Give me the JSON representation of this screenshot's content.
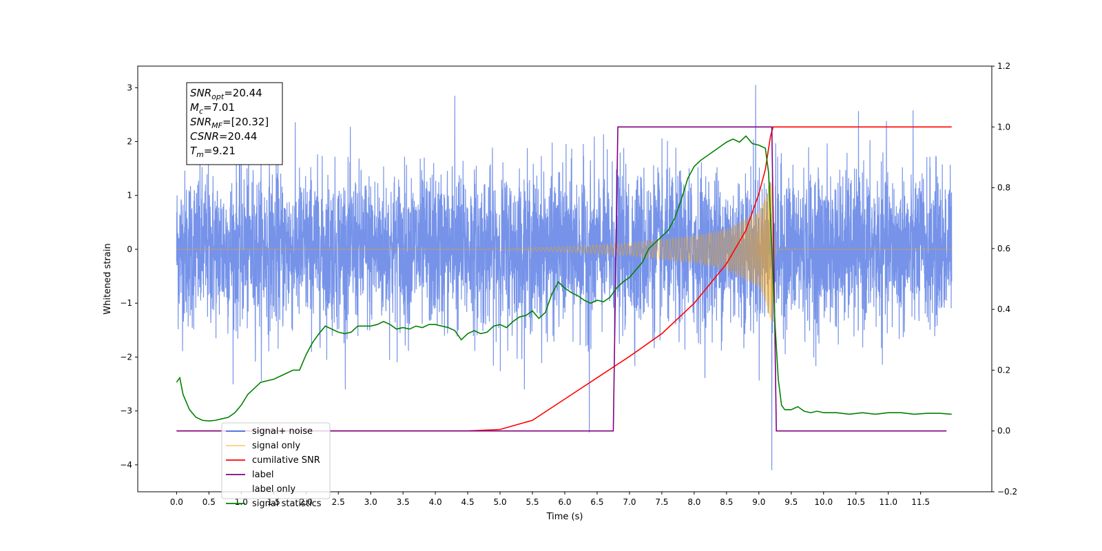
{
  "chart_data": {
    "type": "line",
    "xlabel": "Time (s)",
    "ylabel": "Whitened strain",
    "xlim": [
      -0.6,
      12.6
    ],
    "ylim": [
      -4.5,
      3.4
    ],
    "ylim_right": [
      -0.2,
      1.2
    ],
    "x_ticks": [
      "0.0",
      "0.5",
      "1.0",
      "1.5",
      "2.0",
      "2.5",
      "3.0",
      "3.5",
      "4.0",
      "4.5",
      "5.0",
      "5.5",
      "6.0",
      "6.5",
      "7.0",
      "7.5",
      "8.0",
      "8.5",
      "9.0",
      "9.5",
      "10.0",
      "10.5",
      "11.0",
      "11.5"
    ],
    "y_ticks_left": [
      "−4",
      "−3",
      "−2",
      "−1",
      "0",
      "1",
      "2",
      "3"
    ],
    "y_ticks_right": [
      "−0.2",
      "0.0",
      "0.2",
      "0.4",
      "0.6",
      "0.8",
      "1.0",
      "1.2"
    ],
    "grid": false,
    "legend_position": "lower-left",
    "legend": [
      {
        "label": "signal+ noise",
        "color": "#4169e1"
      },
      {
        "label": "signal only",
        "color": "#ffa500"
      },
      {
        "label": "cumilative SNR",
        "color": "#ff0000"
      },
      {
        "label": "label",
        "color": "#800080"
      },
      {
        "label": "label only",
        "color": "#808080"
      },
      {
        "label": "signal statistics",
        "color": "#008000"
      }
    ],
    "annotation": {
      "lines": [
        {
          "base": "SNR",
          "sub": "opt",
          "value": "=20.44"
        },
        {
          "base": "M",
          "sub": "c",
          "value": "=7.01"
        },
        {
          "base": "SNR",
          "sub": "MF",
          "value": "=[20.32]"
        },
        {
          "base": "CSNR",
          "sub": "",
          "value": "=20.44"
        },
        {
          "base": "T",
          "sub": "m",
          "value": "=9.21"
        }
      ]
    },
    "series": [
      {
        "name": "signal+ noise",
        "axis": "left",
        "color": "#4169e1",
        "noise": {
          "x_start": 0.0,
          "x_end": 11.98,
          "amplitude_sigma": 1.0,
          "spikes": [
            {
              "x": 6.38,
              "y": -3.4
            },
            {
              "x": 9.2,
              "y": -4.1
            },
            {
              "x": 8.95,
              "y": 3.05
            },
            {
              "x": 4.3,
              "y": 2.85
            }
          ]
        }
      },
      {
        "name": "signal only",
        "axis": "left",
        "color": "#ffa500",
        "envelope": {
          "x": [
            0.0,
            4.5,
            5.0,
            6.0,
            7.0,
            8.0,
            8.5,
            9.0,
            9.1,
            9.15,
            9.21,
            9.25,
            11.98
          ],
          "amp": [
            0.0,
            0.0,
            0.01,
            0.05,
            0.12,
            0.25,
            0.38,
            0.7,
            0.95,
            1.2,
            1.4,
            0.0,
            0.0
          ]
        }
      },
      {
        "name": "cumilative SNR",
        "axis": "right",
        "color": "#ff0000",
        "x": [
          0.0,
          4.5,
          5.0,
          5.5,
          6.0,
          6.5,
          7.0,
          7.5,
          8.0,
          8.5,
          8.8,
          9.0,
          9.1,
          9.18,
          9.22,
          11.98
        ],
        "y": [
          0.0,
          0.0,
          0.005,
          0.035,
          0.105,
          0.175,
          0.245,
          0.32,
          0.42,
          0.55,
          0.66,
          0.78,
          0.86,
          0.97,
          1.0,
          1.0
        ]
      },
      {
        "name": "label",
        "axis": "right",
        "color": "#800080",
        "x": [
          0.0,
          6.75,
          6.82,
          9.2,
          9.27,
          11.9
        ],
        "y": [
          0.0,
          0.0,
          1.0,
          1.0,
          0.0,
          0.0
        ]
      },
      {
        "name": "signal statistics",
        "axis": "right",
        "color": "#008000",
        "x": [
          0.0,
          0.05,
          0.1,
          0.2,
          0.3,
          0.4,
          0.5,
          0.6,
          0.7,
          0.8,
          0.9,
          1.0,
          1.1,
          1.2,
          1.3,
          1.4,
          1.5,
          1.6,
          1.7,
          1.8,
          1.9,
          2.0,
          2.1,
          2.2,
          2.3,
          2.4,
          2.5,
          2.6,
          2.7,
          2.8,
          2.9,
          3.0,
          3.1,
          3.2,
          3.3,
          3.4,
          3.5,
          3.6,
          3.7,
          3.8,
          3.9,
          4.0,
          4.1,
          4.2,
          4.3,
          4.4,
          4.5,
          4.6,
          4.7,
          4.8,
          4.9,
          5.0,
          5.1,
          5.2,
          5.3,
          5.4,
          5.5,
          5.6,
          5.7,
          5.8,
          5.9,
          6.0,
          6.1,
          6.2,
          6.3,
          6.4,
          6.5,
          6.6,
          6.7,
          6.8,
          6.9,
          7.0,
          7.1,
          7.2,
          7.3,
          7.4,
          7.5,
          7.6,
          7.7,
          7.8,
          7.9,
          8.0,
          8.1,
          8.2,
          8.3,
          8.4,
          8.5,
          8.6,
          8.7,
          8.8,
          8.9,
          9.0,
          9.1,
          9.15,
          9.2,
          9.25,
          9.3,
          9.35,
          9.4,
          9.5,
          9.6,
          9.7,
          9.8,
          9.9,
          10.0,
          10.2,
          10.4,
          10.6,
          10.8,
          11.0,
          11.2,
          11.4,
          11.6,
          11.8,
          11.98
        ],
        "y": [
          0.16,
          0.175,
          0.12,
          0.07,
          0.045,
          0.035,
          0.033,
          0.035,
          0.04,
          0.045,
          0.06,
          0.085,
          0.12,
          0.14,
          0.16,
          0.165,
          0.17,
          0.18,
          0.19,
          0.2,
          0.2,
          0.25,
          0.29,
          0.32,
          0.345,
          0.335,
          0.325,
          0.32,
          0.325,
          0.345,
          0.345,
          0.345,
          0.35,
          0.36,
          0.35,
          0.335,
          0.34,
          0.335,
          0.345,
          0.34,
          0.35,
          0.35,
          0.345,
          0.34,
          0.33,
          0.3,
          0.32,
          0.33,
          0.32,
          0.325,
          0.345,
          0.35,
          0.34,
          0.36,
          0.375,
          0.38,
          0.395,
          0.37,
          0.39,
          0.45,
          0.49,
          0.47,
          0.455,
          0.445,
          0.43,
          0.42,
          0.43,
          0.425,
          0.44,
          0.47,
          0.49,
          0.505,
          0.53,
          0.555,
          0.6,
          0.62,
          0.64,
          0.66,
          0.7,
          0.76,
          0.83,
          0.87,
          0.89,
          0.905,
          0.92,
          0.935,
          0.95,
          0.96,
          0.95,
          0.97,
          0.945,
          0.94,
          0.93,
          0.85,
          0.6,
          0.35,
          0.17,
          0.085,
          0.07,
          0.07,
          0.08,
          0.065,
          0.06,
          0.065,
          0.06,
          0.06,
          0.055,
          0.06,
          0.055,
          0.06,
          0.06,
          0.055,
          0.058,
          0.058,
          0.055
        ]
      }
    ]
  }
}
